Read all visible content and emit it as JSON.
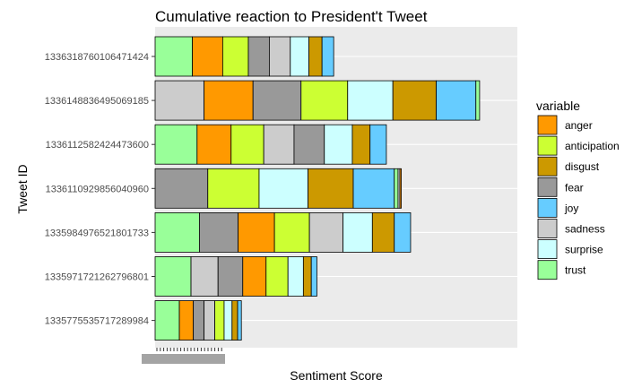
{
  "chart_data": {
    "type": "bar",
    "orientation": "horizontal",
    "stacked": true,
    "title": "Cumulative reaction to President't Tweet",
    "xlabel": "Sentiment Score",
    "ylabel": "Tweet ID",
    "grid": true,
    "legend_position": "right",
    "legend_title": "variable",
    "categories": [
      "1336318760106471424",
      "1336148836495069185",
      "1336112582424473600",
      "1336110929856040960",
      "1335984976521801733",
      "1335971721262796801",
      "1335775535717289984"
    ],
    "series_colors": {
      "anger": "#ff9900",
      "anticipation": "#ccff33",
      "disgust": "#cc9900",
      "fear": "#999999",
      "joy": "#66ccff",
      "sadness": "#cccccc",
      "surprise": "#ccffff",
      "trust": "#99ff99"
    },
    "legend_order": [
      "anger",
      "anticipation",
      "disgust",
      "fear",
      "joy",
      "sadness",
      "surprise",
      "trust"
    ],
    "bars": [
      {
        "id": "1336318760106471424",
        "segments": [
          {
            "variable": "trust",
            "value": 8
          },
          {
            "variable": "anger",
            "value": 6.5
          },
          {
            "variable": "anticipation",
            "value": 5.5
          },
          {
            "variable": "fear",
            "value": 4.5
          },
          {
            "variable": "sadness",
            "value": 4.5
          },
          {
            "variable": "surprise",
            "value": 4
          },
          {
            "variable": "disgust",
            "value": 2.8
          },
          {
            "variable": "joy",
            "value": 2.5
          }
        ]
      },
      {
        "id": "1336148836495069185",
        "segments": [
          {
            "variable": "sadness",
            "value": 10.5
          },
          {
            "variable": "anger",
            "value": 10.5
          },
          {
            "variable": "fear",
            "value": 10.3
          },
          {
            "variable": "anticipation",
            "value": 10
          },
          {
            "variable": "surprise",
            "value": 9.7
          },
          {
            "variable": "disgust",
            "value": 9.3
          },
          {
            "variable": "joy",
            "value": 8.5
          },
          {
            "variable": "trust",
            "value": 0.8
          }
        ]
      },
      {
        "id": "1336112582424473600",
        "segments": [
          {
            "variable": "trust",
            "value": 9
          },
          {
            "variable": "anger",
            "value": 7.3
          },
          {
            "variable": "anticipation",
            "value": 7
          },
          {
            "variable": "sadness",
            "value": 6.5
          },
          {
            "variable": "fear",
            "value": 6.5
          },
          {
            "variable": "surprise",
            "value": 6
          },
          {
            "variable": "disgust",
            "value": 3.8
          },
          {
            "variable": "joy",
            "value": 3.5
          }
        ]
      },
      {
        "id": "1336110929856040960",
        "segments": [
          {
            "variable": "fear",
            "value": 11.3
          },
          {
            "variable": "anticipation",
            "value": 11
          },
          {
            "variable": "surprise",
            "value": 10.5
          },
          {
            "variable": "disgust",
            "value": 9.7
          },
          {
            "variable": "joy",
            "value": 8.8
          },
          {
            "variable": "trust",
            "value": 0.8
          },
          {
            "variable": "sadness",
            "value": 0.4
          },
          {
            "variable": "anger",
            "value": 0.3
          }
        ]
      },
      {
        "id": "1335984976521801733",
        "segments": [
          {
            "variable": "trust",
            "value": 9.5
          },
          {
            "variable": "fear",
            "value": 8.3
          },
          {
            "variable": "anger",
            "value": 7.8
          },
          {
            "variable": "anticipation",
            "value": 7.5
          },
          {
            "variable": "sadness",
            "value": 7.2
          },
          {
            "variable": "surprise",
            "value": 6.3
          },
          {
            "variable": "disgust",
            "value": 4.7
          },
          {
            "variable": "joy",
            "value": 3.5
          }
        ]
      },
      {
        "id": "1335971721262796801",
        "segments": [
          {
            "variable": "trust",
            "value": 7.7
          },
          {
            "variable": "sadness",
            "value": 5.8
          },
          {
            "variable": "fear",
            "value": 5.3
          },
          {
            "variable": "anger",
            "value": 5
          },
          {
            "variable": "anticipation",
            "value": 4.7
          },
          {
            "variable": "surprise",
            "value": 3.3
          },
          {
            "variable": "disgust",
            "value": 1.7
          },
          {
            "variable": "joy",
            "value": 1.2
          }
        ]
      },
      {
        "id": "1335775535717289984",
        "segments": [
          {
            "variable": "trust",
            "value": 5.2
          },
          {
            "variable": "anger",
            "value": 3
          },
          {
            "variable": "fear",
            "value": 2.3
          },
          {
            "variable": "sadness",
            "value": 2.3
          },
          {
            "variable": "anticipation",
            "value": 2
          },
          {
            "variable": "surprise",
            "value": 1.7
          },
          {
            "variable": "disgust",
            "value": 1.2
          },
          {
            "variable": "joy",
            "value": 0.8
          }
        ]
      }
    ]
  }
}
